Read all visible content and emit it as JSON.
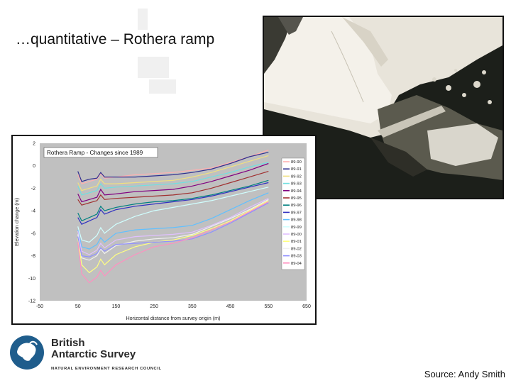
{
  "slide": {
    "title": "…quantitative – Rothera ramp",
    "source": "Source: Andy Smith"
  },
  "logo": {
    "line1": "British",
    "line2": "Antarctic Survey",
    "line3": "NATURAL ENVIRONMENT RESEARCH COUNCIL",
    "color": "#1f5d8c"
  },
  "photo": {
    "sea_color": "#1c1f1a",
    "ice_color": "#e7e2d6"
  },
  "chart_data": {
    "type": "line",
    "title": "Rothera Ramp - Changes since 1989",
    "xlabel": "Horizontal distance from survey origin (m)",
    "ylabel": "Elevation change (m)",
    "xlim": [
      -50,
      650
    ],
    "ylim": [
      -12,
      2
    ],
    "xticks": [
      -50,
      50,
      150,
      250,
      350,
      450,
      550,
      650
    ],
    "yticks": [
      2,
      0,
      -2,
      -4,
      -6,
      -8,
      -10,
      -12
    ],
    "grid": false,
    "legend": "right",
    "plot_background": "#c0c0c0",
    "x": [
      50,
      60,
      80,
      100,
      110,
      120,
      150,
      200,
      250,
      300,
      350,
      400,
      450,
      500,
      550
    ],
    "series": [
      {
        "name": "89-90",
        "color": "#ffb0b0",
        "values": [
          -0.8,
          -1.6,
          -1.4,
          -1.2,
          -0.7,
          -1.1,
          -1.0,
          -0.8,
          -0.7,
          -0.6,
          -0.4,
          -0.2,
          0.3,
          0.8,
          1.4
        ]
      },
      {
        "name": "89-91",
        "color": "#303090",
        "values": [
          -0.5,
          -1.4,
          -1.2,
          -1.1,
          -0.6,
          -1.0,
          -1.0,
          -1.0,
          -0.9,
          -0.8,
          -0.6,
          -0.3,
          0.2,
          0.8,
          1.2
        ]
      },
      {
        "name": "89-92",
        "color": "#f0e080",
        "values": [
          -1.5,
          -2.2,
          -2.0,
          -1.8,
          -1.2,
          -1.6,
          -1.6,
          -1.5,
          -1.4,
          -1.3,
          -1.0,
          -0.6,
          -0.1,
          0.4,
          0.9
        ]
      },
      {
        "name": "89-93",
        "color": "#70e0e0",
        "values": [
          -1.8,
          -2.6,
          -2.4,
          -2.2,
          -1.6,
          -2.0,
          -1.9,
          -1.8,
          -1.7,
          -1.6,
          -1.4,
          -1.0,
          -0.6,
          -0.1,
          0.3
        ]
      },
      {
        "name": "89-94",
        "color": "#800080",
        "values": [
          -2.5,
          -3.2,
          -3.0,
          -2.8,
          -2.1,
          -2.6,
          -2.5,
          -2.3,
          -2.2,
          -2.1,
          -1.8,
          -1.4,
          -0.9,
          -0.4,
          0.2
        ]
      },
      {
        "name": "89-95",
        "color": "#a03030",
        "values": [
          -3.0,
          -3.5,
          -3.3,
          -3.1,
          -2.6,
          -3.0,
          -2.9,
          -2.8,
          -2.7,
          -2.6,
          -2.4,
          -2.0,
          -1.5,
          -1.0,
          -0.5
        ]
      },
      {
        "name": "89-96",
        "color": "#008080",
        "values": [
          -4.2,
          -4.9,
          -4.6,
          -4.3,
          -3.6,
          -4.0,
          -3.7,
          -3.4,
          -3.2,
          -3.1,
          -2.9,
          -2.6,
          -2.2,
          -1.8,
          -1.3
        ]
      },
      {
        "name": "89-97",
        "color": "#3030c0",
        "values": [
          -4.6,
          -5.2,
          -4.9,
          -4.6,
          -3.9,
          -4.3,
          -3.9,
          -3.6,
          -3.4,
          -3.2,
          -3.0,
          -2.7,
          -2.3,
          -1.9,
          -1.5
        ]
      },
      {
        "name": "89-98",
        "color": "#60c0ff",
        "values": [
          -5.7,
          -7.2,
          -7.4,
          -7.0,
          -6.4,
          -6.8,
          -6.0,
          -5.7,
          -5.6,
          -5.5,
          -5.3,
          -4.7,
          -3.9,
          -3.1,
          -2.4
        ]
      },
      {
        "name": "89-99",
        "color": "#d0ffff",
        "values": [
          -5.4,
          -6.6,
          -6.8,
          -6.2,
          -5.5,
          -6.0,
          -5.2,
          -4.5,
          -4.0,
          -3.7,
          -3.4,
          -3.1,
          -2.7,
          -2.3,
          -1.9
        ]
      },
      {
        "name": "89-00",
        "color": "#e0c0ff",
        "values": [
          -5.8,
          -7.6,
          -7.9,
          -7.5,
          -6.9,
          -7.3,
          -6.6,
          -6.3,
          -6.2,
          -6.1,
          -5.9,
          -5.3,
          -4.6,
          -3.7,
          -2.9
        ]
      },
      {
        "name": "89-01",
        "color": "#ffff80",
        "values": [
          -6.4,
          -8.8,
          -9.5,
          -9.0,
          -8.3,
          -8.8,
          -7.9,
          -7.2,
          -6.8,
          -6.6,
          -6.2,
          -5.6,
          -4.9,
          -4.0,
          -3.1
        ]
      },
      {
        "name": "89-02",
        "color": "#f0f0f0",
        "values": [
          -6.1,
          -8.2,
          -8.4,
          -8.0,
          -7.4,
          -7.8,
          -7.1,
          -6.7,
          -6.5,
          -6.4,
          -6.1,
          -5.4,
          -4.7,
          -3.9,
          -3.0
        ]
      },
      {
        "name": "89-03",
        "color": "#9090ff",
        "values": [
          -6.3,
          -8.0,
          -8.1,
          -7.8,
          -7.3,
          -7.6,
          -7.0,
          -6.9,
          -6.8,
          -6.7,
          -6.5,
          -5.9,
          -5.1,
          -4.2,
          -3.3
        ]
      },
      {
        "name": "89-04",
        "color": "#ff90c0",
        "values": [
          -6.8,
          -9.6,
          -10.4,
          -9.9,
          -9.3,
          -9.8,
          -8.8,
          -7.9,
          -7.2,
          -6.9,
          -6.4,
          -5.7,
          -5.0,
          -4.1,
          -3.2
        ]
      }
    ]
  }
}
